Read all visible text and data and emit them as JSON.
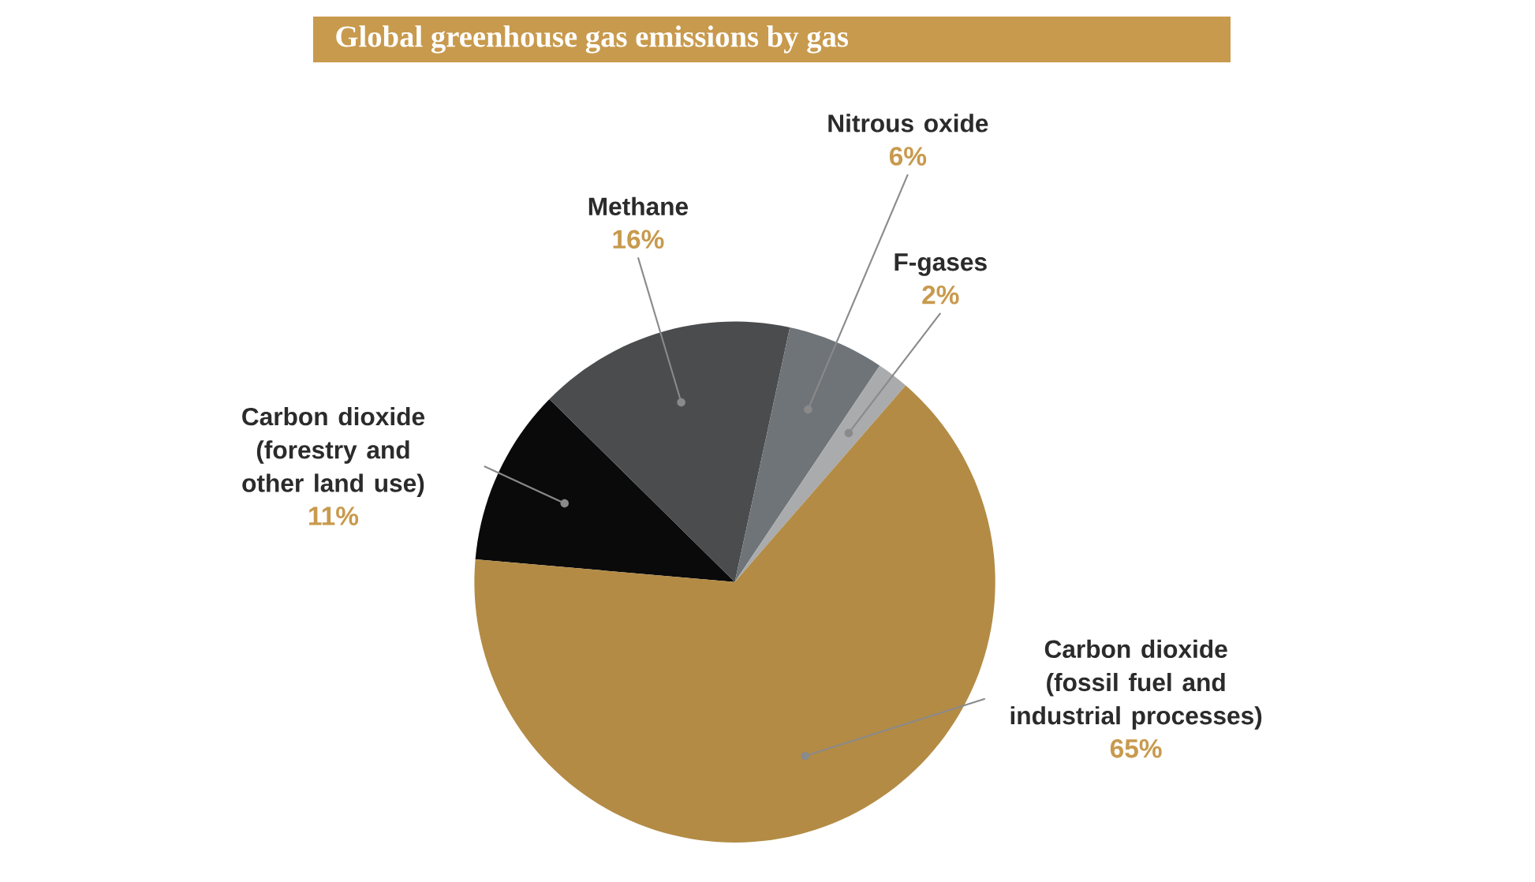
{
  "chart_data": {
    "type": "pie",
    "title": "Global greenhouse gas emissions by gas",
    "categories": [
      "Carbon dioxide (forestry and other land use)",
      "Methane",
      "Nitrous oxide",
      "F-gases",
      "Carbon dioxide (fossil fuel and industrial processes)"
    ],
    "values": [
      11,
      16,
      6,
      2,
      65
    ],
    "colors": [
      "#0a0a0a",
      "#4a4c4e",
      "#6f7478",
      "#a9abad",
      "#b38b45"
    ],
    "value_labels": [
      "11%",
      "16%",
      "6%",
      "2%",
      "65%"
    ]
  }
}
